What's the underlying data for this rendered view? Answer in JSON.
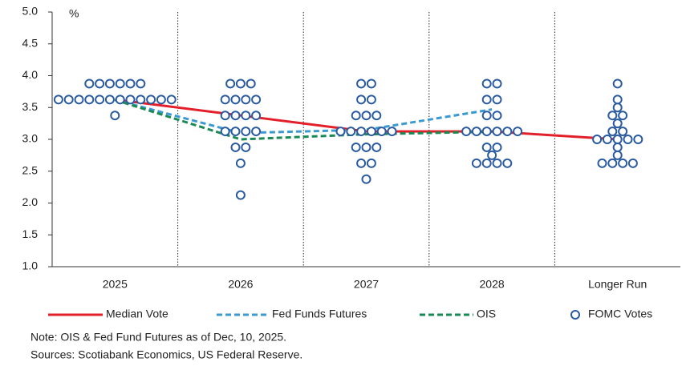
{
  "chart_data": {
    "type": "dot_plot",
    "y_unit": "%",
    "categories": [
      "2025",
      "2026",
      "2027",
      "2028",
      "Longer Run"
    ],
    "ylim": [
      1.0,
      5.0
    ],
    "yticks": [
      {
        "value": 1.0,
        "label": "1.0"
      },
      {
        "value": 1.5,
        "label": "1.5"
      },
      {
        "value": 2.0,
        "label": "2.0"
      },
      {
        "value": 2.5,
        "label": "2.5"
      },
      {
        "value": 3.0,
        "label": "3.0"
      },
      {
        "value": 3.5,
        "label": "3.5"
      },
      {
        "value": 4.0,
        "label": "4.0"
      },
      {
        "value": 4.5,
        "label": "4.5"
      },
      {
        "value": 5.0,
        "label": "5.0"
      }
    ],
    "series": [
      {
        "name": "Median Vote",
        "color": "#e3202a",
        "dash": false,
        "values": [
          3.625,
          3.375,
          3.125,
          3.125,
          3.0
        ]
      },
      {
        "name": "Fed Funds Futures",
        "color": "#3d9ad1",
        "dash": true,
        "values": [
          3.62,
          3.1,
          3.15,
          3.47,
          null
        ]
      },
      {
        "name": "OIS",
        "color": "#1a8a55",
        "dash": true,
        "values": [
          3.62,
          3.0,
          3.08,
          3.12,
          null
        ]
      }
    ],
    "dots": {
      "name": "FOMC Votes",
      "color": "#2a5aa0",
      "values": [
        [
          3.875,
          3.875,
          3.875,
          3.875,
          3.875,
          3.875,
          3.625,
          3.625,
          3.625,
          3.625,
          3.625,
          3.625,
          3.625,
          3.625,
          3.625,
          3.625,
          3.625,
          3.625,
          3.375
        ],
        [
          3.875,
          3.875,
          3.875,
          3.625,
          3.625,
          3.625,
          3.625,
          3.375,
          3.375,
          3.375,
          3.375,
          3.125,
          3.125,
          3.125,
          3.125,
          2.875,
          2.875,
          2.625,
          2.125
        ],
        [
          3.875,
          3.875,
          3.625,
          3.625,
          3.375,
          3.375,
          3.375,
          3.125,
          3.125,
          3.125,
          3.125,
          3.125,
          3.125,
          2.875,
          2.875,
          2.875,
          2.625,
          2.625,
          2.375
        ],
        [
          3.875,
          3.875,
          3.625,
          3.625,
          3.375,
          3.375,
          3.125,
          3.125,
          3.125,
          3.125,
          3.125,
          3.125,
          2.875,
          2.875,
          2.75,
          2.625,
          2.625,
          2.625,
          2.625
        ],
        [
          3.875,
          3.625,
          3.5,
          3.375,
          3.375,
          3.25,
          3.125,
          3.125,
          3.0,
          3.0,
          3.0,
          3.0,
          3.0,
          2.875,
          2.75,
          2.625,
          2.625,
          2.625,
          2.625
        ]
      ]
    },
    "notes": [
      "Note: OIS & Fed Fund Futures as of Dec, 10, 2025.",
      "Sources: Scotiabank Economics, US Federal Reserve."
    ]
  }
}
